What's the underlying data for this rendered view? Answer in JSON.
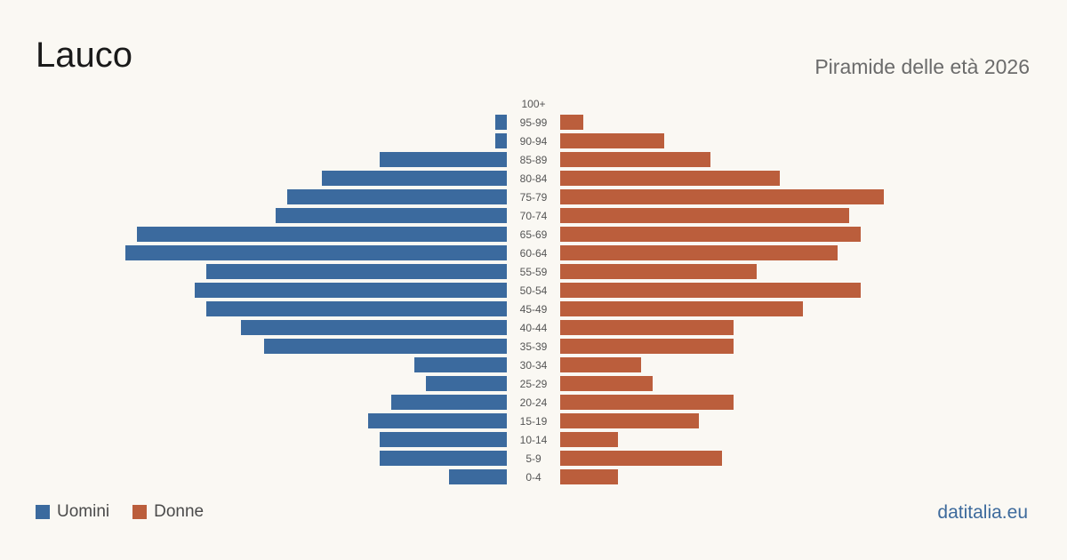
{
  "header": {
    "title": "Lauco",
    "subtitle": "Piramide delle età 2026"
  },
  "legend": {
    "male_label": "Uomini",
    "female_label": "Donne"
  },
  "footer": {
    "brand": "datitalia.eu"
  },
  "colors": {
    "male": "#3b6a9e",
    "female": "#bb5e3c",
    "age_label": "#555555"
  },
  "chart_data": {
    "type": "bar",
    "orientation": "horizontal-pyramid",
    "categories": [
      "100+",
      "95-99",
      "90-94",
      "85-89",
      "80-84",
      "75-79",
      "70-74",
      "65-69",
      "60-64",
      "55-59",
      "50-54",
      "45-49",
      "40-44",
      "35-39",
      "30-34",
      "25-29",
      "20-24",
      "15-19",
      "10-14",
      "5-9",
      "0-4"
    ],
    "series": [
      {
        "name": "Uomini",
        "values": [
          0,
          1,
          1,
          11,
          16,
          19,
          20,
          32,
          33,
          26,
          27,
          26,
          23,
          21,
          8,
          7,
          10,
          12,
          11,
          11,
          5
        ]
      },
      {
        "name": "Donne",
        "values": [
          0,
          2,
          9,
          13,
          19,
          28,
          25,
          26,
          24,
          17,
          26,
          21,
          15,
          15,
          7,
          8,
          15,
          12,
          5,
          14,
          5
        ]
      }
    ]
  }
}
